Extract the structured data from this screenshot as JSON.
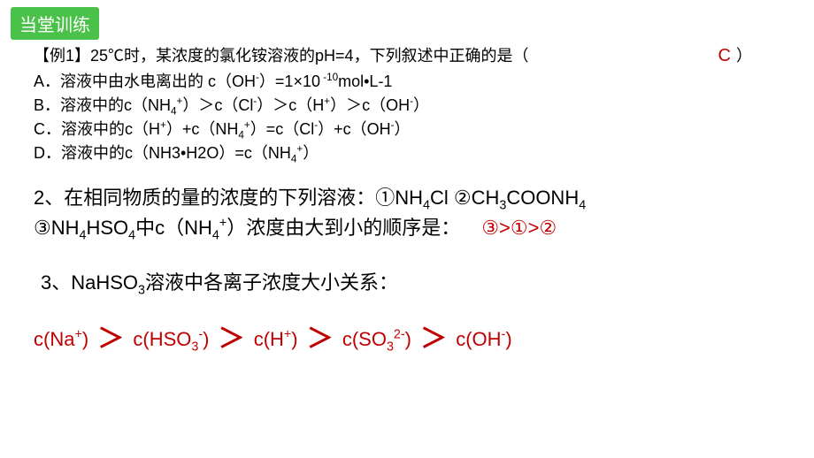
{
  "badge": "当堂训练",
  "q1": {
    "stem_pre": "【例1】25℃时，某浓度的氯化铵溶液的pH=4，下列叙述中正确的是（",
    "stem_post": "）",
    "answer": "C",
    "options": {
      "A_pre": "A．溶液中由水电离出的 c（OH",
      "A_mid": "）=1×10",
      "A_post": "mol•L-1",
      "B_pre": "B．溶液中的c（NH",
      "B_2": "）＞c（Cl",
      "B_3": "）＞c（H",
      "B_4": "）＞c（OH",
      "B_5": "）",
      "C_pre": "C．溶液中的c（H",
      "C_2": "）+c（NH",
      "C_3": "）=c（Cl",
      "C_4": "）+c（OH",
      "C_5": "）",
      "D_pre": "D．溶液中的c（NH3•H2O）=c（NH",
      "D_2": "）"
    }
  },
  "q2": {
    "line1_pre": "2、在相同物质的量的浓度的下列溶液：①NH",
    "line1_mid": "Cl ②CH",
    "line1_mid2": "COONH",
    "line2_pre": "③NH",
    "line2_mid": "HSO",
    "line2_mid2": "中c（NH",
    "line2_post": "）浓度由大到小的顺序是：",
    "answer": "③>①>②"
  },
  "q3": {
    "stem_pre": "3、NaHSO",
    "stem_post": "溶液中各离子浓度大小关系：",
    "answer": {
      "t1_pre": "c(Na",
      "t1_post": ")",
      "t2_pre": "c(HSO",
      "t2_post": ")",
      "t3_pre": "c(H",
      "t3_post": ")",
      "t4_pre": "c(SO",
      "t4_post": ")",
      "t5_pre": "c(OH",
      "t5_post": ")"
    }
  },
  "colors": {
    "badge_bg": "#4ac24a",
    "answer": "#c00000",
    "text": "#000000",
    "bg": "#ffffff"
  }
}
